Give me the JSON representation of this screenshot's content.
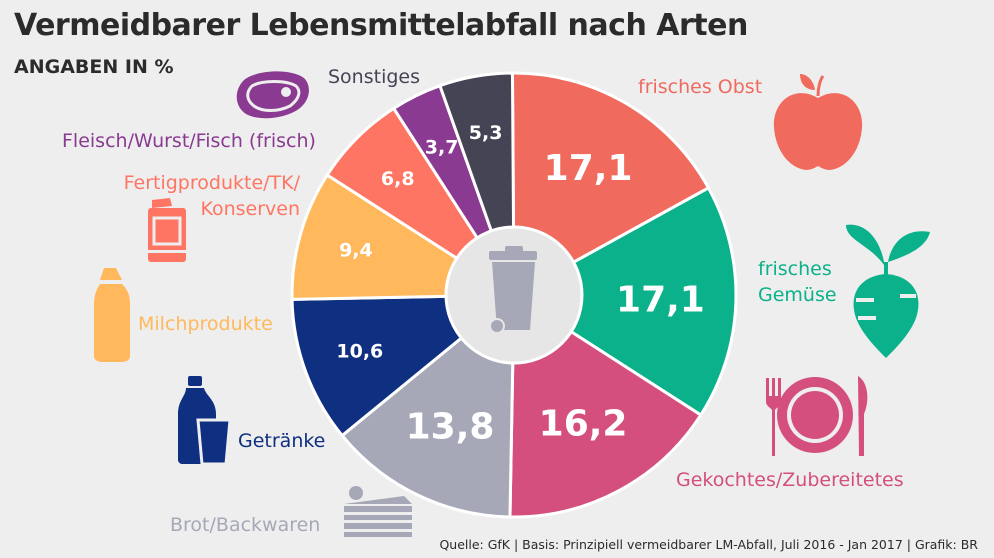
{
  "title": "Vermeidbarer Lebensmittelabfall nach Arten",
  "subtitle": "ANGABEN IN %",
  "source": "Quelle: GfK | Basis: Prinzipiell vermeidbarer LM-Abfall, Juli 2016 - Jan 2017 | Grafik: BR",
  "labels": {
    "obst": "frisches Obst",
    "gemuese_1": "frisches",
    "gemuese_2": "Gemüse",
    "gekochtes": "Gekochtes/Zubereitetes",
    "brot": "Brot/Backwaren",
    "getraenke": "Getränke",
    "milch": "Milchprodukte",
    "fertig_1": "Fertigprodukte/TK/",
    "fertig_2": "Konserven",
    "fleisch": "Fleisch/Wurst/Fisch (frisch)",
    "sonstiges": "Sonstiges"
  },
  "icons": [
    "apple-icon",
    "beet-icon",
    "plate-cutlery-icon",
    "cake-icon",
    "bottle-glass-icon",
    "milk-bottle-icon",
    "can-icon",
    "steak-icon",
    "trash-bin-icon"
  ],
  "chart_data": {
    "type": "pie",
    "unit": "%",
    "slices": [
      {
        "value": 17.1,
        "value_label": "17,1",
        "color": "#f06a5e"
      },
      {
        "value": 17.1,
        "value_label": "17,1",
        "color": "#0bb18a"
      },
      {
        "value": 16.2,
        "value_label": "16,2",
        "color": "#d44f7d"
      },
      {
        "value": 13.8,
        "value_label": "13,8",
        "color": "#a6a8b8"
      },
      {
        "value": 10.6,
        "value_label": "10,6",
        "color": "#0f2f80"
      },
      {
        "value": 9.4,
        "value_label": "9,4",
        "color": "#ffb95c"
      },
      {
        "value": 6.8,
        "value_label": "6,8",
        "color": "#ff7563"
      },
      {
        "value": 3.7,
        "value_label": "3,7",
        "color": "#8a3a91"
      },
      {
        "value": 5.3,
        "value_label": "5,3",
        "color": "#454454"
      }
    ],
    "label_colors": {
      "obst": "#f06a5e",
      "gemuese": "#0bb18a",
      "gekochtes": "#d44f7d",
      "brot": "#a6a8b8",
      "getraenke": "#0f2f80",
      "milch": "#ffb95c",
      "fertig": "#ff7563",
      "fleisch": "#8a3a91",
      "sonstiges": "#454454"
    }
  }
}
